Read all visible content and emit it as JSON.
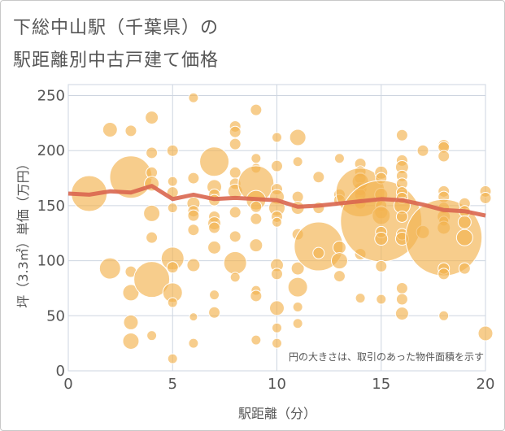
{
  "title_line1": "下総中山駅（千葉県）の",
  "title_line2": "駅距離別中古戸建て価格",
  "note": "円の大きさは、取引のあった物件面積を示す",
  "colors": {
    "bubble": "#f2b24e",
    "line": "#d9664f",
    "grid": "#cdd5e0",
    "axis_text": "#555555"
  },
  "chart_data": {
    "type": "scatter",
    "xlabel": "駅距離（分）",
    "ylabel": "坪（3.3㎡）単価（万円）",
    "xlim": [
      0,
      20
    ],
    "ylim": [
      0,
      260
    ],
    "xticks": [
      "0",
      "5",
      "10",
      "15",
      "20"
    ],
    "yticks": [
      "0",
      "50",
      "100",
      "150",
      "200",
      "250"
    ],
    "trend": [
      [
        0,
        161
      ],
      [
        1,
        160
      ],
      [
        2,
        163
      ],
      [
        3,
        162
      ],
      [
        4,
        168
      ],
      [
        5,
        156
      ],
      [
        6,
        160
      ],
      [
        7,
        156
      ],
      [
        8,
        157
      ],
      [
        9,
        156
      ],
      [
        10,
        155
      ],
      [
        11,
        149
      ],
      [
        12,
        150
      ],
      [
        13,
        152
      ],
      [
        14,
        154
      ],
      [
        15,
        156
      ],
      [
        16,
        155
      ],
      [
        17,
        151
      ],
      [
        18,
        146
      ],
      [
        19,
        145
      ],
      [
        20,
        141
      ]
    ],
    "bubbles": [
      [
        1,
        161,
        22
      ],
      [
        2,
        219,
        9
      ],
      [
        2,
        93,
        13
      ],
      [
        3,
        218,
        7
      ],
      [
        3,
        176,
        26
      ],
      [
        3,
        90,
        7
      ],
      [
        3,
        71,
        10
      ],
      [
        3,
        44,
        9
      ],
      [
        3,
        27,
        10
      ],
      [
        4,
        230,
        8
      ],
      [
        4,
        198,
        7
      ],
      [
        4,
        180,
        7
      ],
      [
        4,
        170,
        9
      ],
      [
        4,
        143,
        10
      ],
      [
        4,
        121,
        7
      ],
      [
        4,
        83,
        22
      ],
      [
        4,
        32,
        6
      ],
      [
        5,
        200,
        7
      ],
      [
        5,
        172,
        6
      ],
      [
        5,
        162,
        7
      ],
      [
        5,
        148,
        6
      ],
      [
        5,
        102,
        14
      ],
      [
        5,
        94,
        7
      ],
      [
        5,
        71,
        12
      ],
      [
        5,
        62,
        6
      ],
      [
        5,
        11,
        6
      ],
      [
        6,
        248,
        6
      ],
      [
        6,
        175,
        7
      ],
      [
        6,
        152,
        8
      ],
      [
        6,
        145,
        7
      ],
      [
        6,
        141,
        7
      ],
      [
        6,
        128,
        7
      ],
      [
        6,
        96,
        8
      ],
      [
        6,
        49,
        5
      ],
      [
        6,
        25,
        6
      ],
      [
        7,
        190,
        18
      ],
      [
        7,
        167,
        9
      ],
      [
        7,
        160,
        7
      ],
      [
        7,
        155,
        7
      ],
      [
        7,
        140,
        7
      ],
      [
        7,
        134,
        8
      ],
      [
        7,
        130,
        7
      ],
      [
        7,
        112,
        8
      ],
      [
        7,
        69,
        6
      ],
      [
        7,
        53,
        7
      ],
      [
        8,
        222,
        7
      ],
      [
        8,
        217,
        7
      ],
      [
        8,
        206,
        7
      ],
      [
        8,
        180,
        7
      ],
      [
        8,
        170,
        7
      ],
      [
        8,
        163,
        9
      ],
      [
        8,
        144,
        7
      ],
      [
        8,
        122,
        7
      ],
      [
        8,
        98,
        14
      ],
      [
        8,
        85,
        6
      ],
      [
        9,
        237,
        7
      ],
      [
        9,
        193,
        6
      ],
      [
        9,
        184,
        6
      ],
      [
        9,
        170,
        22
      ],
      [
        9,
        155,
        12
      ],
      [
        9,
        149,
        7
      ],
      [
        9,
        138,
        7
      ],
      [
        9,
        114,
        8
      ],
      [
        9,
        73,
        6
      ],
      [
        9,
        68,
        7
      ],
      [
        9,
        28,
        6
      ],
      [
        10,
        212,
        6
      ],
      [
        10,
        186,
        7
      ],
      [
        10,
        165,
        7
      ],
      [
        10,
        158,
        9
      ],
      [
        10,
        148,
        10
      ],
      [
        10,
        140,
        7
      ],
      [
        10,
        135,
        6
      ],
      [
        10,
        96,
        8
      ],
      [
        10,
        88,
        7
      ],
      [
        10,
        57,
        9
      ],
      [
        10,
        39,
        6
      ],
      [
        10,
        25,
        6
      ],
      [
        11,
        212,
        10
      ],
      [
        11,
        190,
        6
      ],
      [
        11,
        158,
        7
      ],
      [
        11,
        148,
        8
      ],
      [
        11,
        124,
        7
      ],
      [
        11,
        93,
        8
      ],
      [
        11,
        76,
        12
      ],
      [
        11,
        58,
        6
      ],
      [
        11,
        43,
        6
      ],
      [
        12,
        113,
        30
      ],
      [
        12,
        107,
        7
      ],
      [
        12,
        176,
        7
      ],
      [
        12,
        148,
        7
      ],
      [
        13,
        193,
        6
      ],
      [
        13,
        112,
        8
      ],
      [
        13,
        100,
        10
      ],
      [
        13,
        86,
        7
      ],
      [
        13,
        160,
        7
      ],
      [
        13,
        155,
        7
      ],
      [
        14,
        188,
        7
      ],
      [
        14,
        181,
        7
      ],
      [
        14,
        175,
        7
      ],
      [
        14,
        165,
        8
      ],
      [
        14,
        160,
        7
      ],
      [
        14,
        152,
        7
      ],
      [
        14,
        172,
        10
      ],
      [
        14,
        162,
        30
      ],
      [
        14,
        106,
        7
      ],
      [
        14,
        66,
        6
      ],
      [
        15,
        180,
        8
      ],
      [
        15,
        175,
        7
      ],
      [
        15,
        160,
        8
      ],
      [
        15,
        150,
        7
      ],
      [
        15,
        144,
        8
      ],
      [
        15,
        141,
        11
      ],
      [
        15,
        136,
        50
      ],
      [
        15,
        126,
        7
      ],
      [
        15,
        120,
        8
      ],
      [
        15,
        95,
        7
      ],
      [
        15,
        65,
        6
      ],
      [
        16,
        214,
        7
      ],
      [
        16,
        191,
        7
      ],
      [
        16,
        185,
        8
      ],
      [
        16,
        177,
        7
      ],
      [
        16,
        170,
        7
      ],
      [
        16,
        162,
        7
      ],
      [
        16,
        157,
        7
      ],
      [
        16,
        150,
        10
      ],
      [
        16,
        140,
        7
      ],
      [
        16,
        124,
        7
      ],
      [
        16,
        120,
        8
      ],
      [
        16,
        75,
        7
      ],
      [
        16,
        65,
        7
      ],
      [
        16,
        52,
        8
      ],
      [
        17,
        200,
        7
      ],
      [
        17,
        126,
        8
      ],
      [
        18,
        205,
        7
      ],
      [
        18,
        203,
        7
      ],
      [
        18,
        195,
        7
      ],
      [
        18,
        163,
        7
      ],
      [
        18,
        158,
        7
      ],
      [
        18,
        148,
        7
      ],
      [
        18,
        140,
        8
      ],
      [
        18,
        136,
        6
      ],
      [
        18,
        130,
        8
      ],
      [
        18,
        121,
        47
      ],
      [
        18,
        93,
        7
      ],
      [
        18,
        88,
        7
      ],
      [
        18,
        50,
        6
      ],
      [
        19,
        152,
        7
      ],
      [
        19,
        145,
        7
      ],
      [
        19,
        135,
        8
      ],
      [
        19,
        121,
        10
      ],
      [
        19,
        93,
        7
      ],
      [
        20,
        163,
        7
      ],
      [
        20,
        157,
        7
      ],
      [
        20,
        34,
        9
      ]
    ]
  }
}
